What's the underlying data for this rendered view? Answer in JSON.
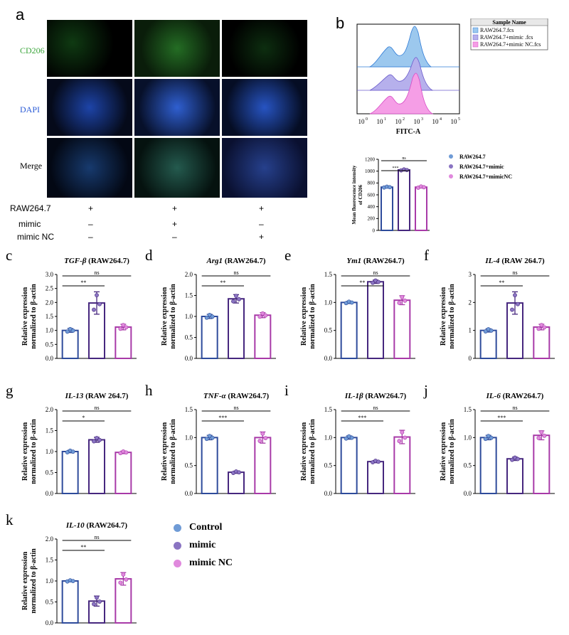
{
  "panel_a": {
    "letter": "a",
    "rows": [
      "CD206",
      "DAPI",
      "Merge"
    ],
    "row_colors": [
      "#3ba53b",
      "#2a5bd6",
      "#000000"
    ],
    "treatments": [
      {
        "label": "RAW264.7",
        "values": [
          "+",
          "+",
          "+"
        ]
      },
      {
        "label": "mimic",
        "values": [
          "–",
          "+",
          "–"
        ]
      },
      {
        "label": "mimic NC",
        "values": [
          "–",
          "–",
          "+"
        ]
      }
    ]
  },
  "panel_b": {
    "letter": "b",
    "flow_legend_header": "Sample Name",
    "flow_legend": [
      "RAW264.7.fcs",
      "RAW264.7+mimic .fcs",
      "RAW264.7+mimic NC.fcs"
    ],
    "flow_colors": [
      "#9cc8ee",
      "#b6b0ec",
      "#f59ee6"
    ],
    "flow_xlabel": "FITC-A",
    "flow_xticks": [
      "10",
      "10",
      "10",
      "10",
      "10",
      "10"
    ],
    "flow_xtick_exp": [
      "0",
      "1",
      "2",
      "3",
      "4",
      "5"
    ],
    "mfi_ylabel": "Mean fluorescence intensity\nof CD206",
    "mfi_legend": [
      "RAW264.7",
      "RAW264.7+mimic",
      "RAW264.7+mimicNC"
    ]
  },
  "colors": {
    "control": "#2e4b9b",
    "mimic": "#46277e",
    "mimic_nc": "#a83aa8",
    "dot_control": "#6f9bd6",
    "dot_mimic": "#8a74c2",
    "dot_nc": "#e089dd"
  },
  "legend_k": [
    "Control",
    "mimic",
    "mimic NC"
  ],
  "y_label_line1": "Relative expression",
  "y_label_line2": "normalized to β-actin",
  "chart_data": [
    {
      "id": "b_mfi",
      "type": "bar",
      "letter": "",
      "gene": "",
      "suffix": "",
      "categories": [
        "RAW264.7",
        "RAW264.7+mimic",
        "RAW264.7+mimicNC"
      ],
      "values": [
        730,
        1020,
        730
      ],
      "errors": [
        10,
        12,
        15
      ],
      "ylim": [
        0,
        1200
      ],
      "yticks": [
        0,
        200,
        400,
        600,
        800,
        1000,
        1200
      ],
      "sig": [
        [
          "***",
          0,
          1
        ],
        [
          "ns",
          0,
          2
        ]
      ]
    },
    {
      "id": "c",
      "type": "bar",
      "letter": "c",
      "gene": "TGF-β",
      "suffix": " (RAW264.7)",
      "categories": [
        "Control",
        "mimic",
        "mimic NC"
      ],
      "values": [
        1.0,
        1.98,
        1.12
      ],
      "errors": [
        0.07,
        0.4,
        0.1
      ],
      "ylim": [
        0,
        3.0
      ],
      "yticks": [
        0.0,
        0.5,
        1.0,
        1.5,
        2.0,
        2.5,
        3.0
      ],
      "sig": [
        [
          "**",
          0,
          1
        ],
        [
          "ns",
          0,
          2
        ]
      ]
    },
    {
      "id": "d",
      "type": "bar",
      "letter": "d",
      "gene": "Arg1",
      "suffix": " (RAW264.7)",
      "categories": [
        "Control",
        "mimic",
        "mimic NC"
      ],
      "values": [
        1.0,
        1.42,
        1.03
      ],
      "errors": [
        0.05,
        0.1,
        0.06
      ],
      "ylim": [
        0,
        2.0
      ],
      "yticks": [
        0.0,
        0.5,
        1.0,
        1.5,
        2.0
      ],
      "sig": [
        [
          "**",
          0,
          1
        ],
        [
          "ns",
          0,
          2
        ]
      ]
    },
    {
      "id": "e",
      "type": "bar",
      "letter": "e",
      "gene": "Ym1",
      "suffix": " (RAW264.7)",
      "categories": [
        "Control",
        "mimic",
        "mimic NC"
      ],
      "values": [
        1.0,
        1.37,
        1.04
      ],
      "errors": [
        0.02,
        0.03,
        0.08
      ],
      "ylim": [
        0,
        1.5
      ],
      "yticks": [
        0.0,
        0.5,
        1.0,
        1.5
      ],
      "sig": [
        [
          "**",
          0,
          1
        ],
        [
          "ns",
          0,
          2
        ]
      ]
    },
    {
      "id": "f",
      "type": "bar",
      "letter": "f",
      "gene": "IL-4",
      "suffix": " (RAW 264.7)",
      "categories": [
        "Control",
        "mimic",
        "mimic NC"
      ],
      "values": [
        1.0,
        1.98,
        1.12
      ],
      "errors": [
        0.06,
        0.4,
        0.1
      ],
      "ylim": [
        0,
        3
      ],
      "yticks": [
        0,
        1,
        2,
        3
      ],
      "sig": [
        [
          "**",
          0,
          1
        ],
        [
          "ns",
          0,
          2
        ]
      ]
    },
    {
      "id": "g",
      "type": "bar",
      "letter": "g",
      "gene": "IL-13",
      "suffix": " (RAW 264.7)",
      "categories": [
        "Control",
        "mimic",
        "mimic NC"
      ],
      "values": [
        1.0,
        1.28,
        0.98
      ],
      "errors": [
        0.03,
        0.06,
        0.03
      ],
      "ylim": [
        0,
        2.0
      ],
      "yticks": [
        0.0,
        0.5,
        1.0,
        1.5,
        2.0
      ],
      "sig": [
        [
          "*",
          0,
          1
        ],
        [
          "ns",
          0,
          2
        ]
      ]
    },
    {
      "id": "h",
      "type": "bar",
      "letter": "h",
      "gene": "TNF-α",
      "suffix": " (RAW264.7)",
      "categories": [
        "Control",
        "mimic",
        "mimic NC"
      ],
      "values": [
        1.0,
        0.38,
        1.0
      ],
      "errors": [
        0.04,
        0.02,
        0.1
      ],
      "ylim": [
        0,
        1.5
      ],
      "yticks": [
        0.0,
        0.5,
        1.0,
        1.5
      ],
      "sig": [
        [
          "***",
          0,
          1
        ],
        [
          "ns",
          0,
          2
        ]
      ]
    },
    {
      "id": "i",
      "type": "bar",
      "letter": "i",
      "gene": "IL-1β",
      "suffix": " (RAW264.7)",
      "categories": [
        "Control",
        "mimic",
        "mimic NC"
      ],
      "values": [
        1.0,
        0.57,
        1.01
      ],
      "errors": [
        0.03,
        0.02,
        0.12
      ],
      "ylim": [
        0,
        1.5
      ],
      "yticks": [
        0.0,
        0.5,
        1.0,
        1.5
      ],
      "sig": [
        [
          "***",
          0,
          1
        ],
        [
          "ns",
          0,
          2
        ]
      ]
    },
    {
      "id": "j",
      "type": "bar",
      "letter": "j",
      "gene": "IL-6",
      "suffix": " (RAW264.7)",
      "categories": [
        "Control",
        "mimic",
        "mimic NC"
      ],
      "values": [
        1.0,
        0.62,
        1.04
      ],
      "errors": [
        0.04,
        0.03,
        0.08
      ],
      "ylim": [
        0,
        1.5
      ],
      "yticks": [
        0.0,
        0.5,
        1.0,
        1.5
      ],
      "sig": [
        [
          "***",
          0,
          1
        ],
        [
          "ns",
          0,
          2
        ]
      ]
    },
    {
      "id": "k",
      "type": "bar",
      "letter": "k",
      "gene": "IL-10",
      "suffix": " (RAW264.7)",
      "categories": [
        "Control",
        "mimic",
        "mimic NC"
      ],
      "values": [
        1.0,
        0.52,
        1.05
      ],
      "errors": [
        0.02,
        0.12,
        0.15
      ],
      "ylim": [
        0,
        2.0
      ],
      "yticks": [
        0.0,
        0.5,
        1.0,
        1.5,
        2.0
      ],
      "sig": [
        [
          "**",
          0,
          1
        ],
        [
          "ns",
          0,
          2
        ]
      ]
    }
  ]
}
